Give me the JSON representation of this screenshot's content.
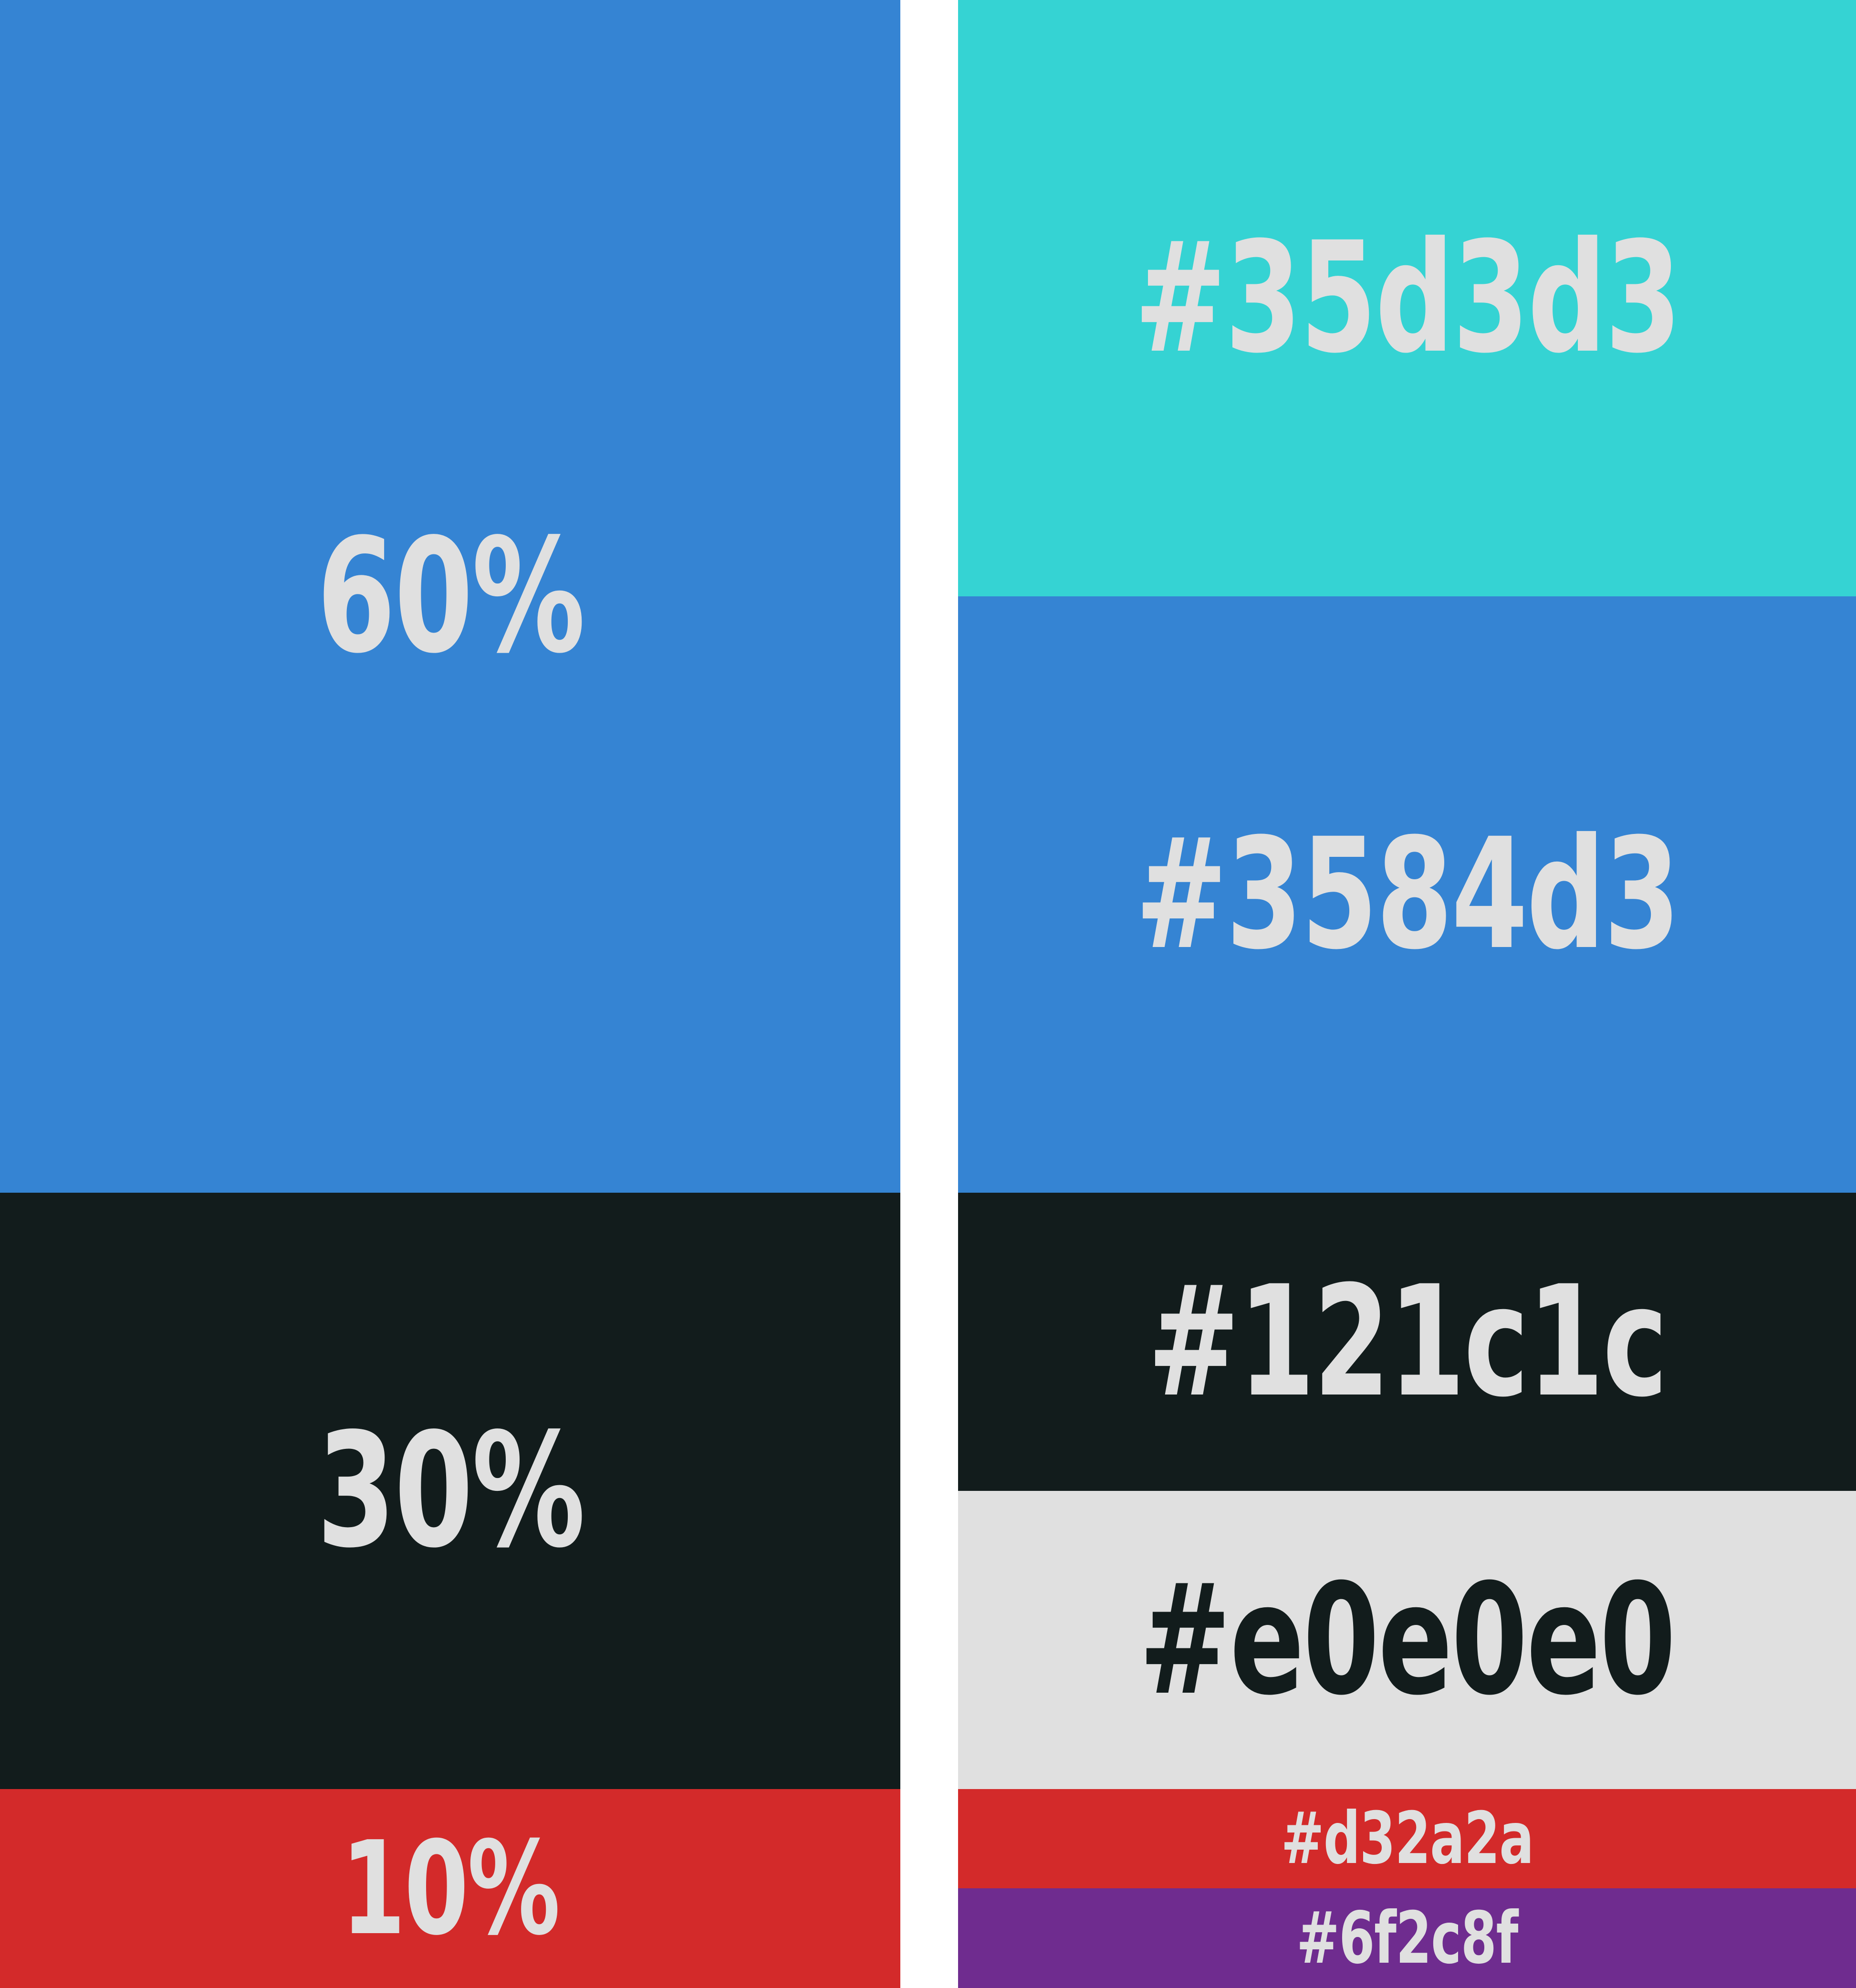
{
  "ratios": [
    {
      "label": "60%",
      "color": "#3584d3",
      "text_color": "#e0e0e0"
    },
    {
      "label": "30%",
      "color": "#121c1c",
      "text_color": "#e0e0e0"
    },
    {
      "label": "10%",
      "color": "#d32a2a",
      "text_color": "#e0e0e0"
    }
  ],
  "swatches": [
    {
      "label": "#35d3d3",
      "color": "#35d3d3",
      "text_color": "#e0e0e0"
    },
    {
      "label": "#3584d3",
      "color": "#3584d3",
      "text_color": "#e0e0e0"
    },
    {
      "label": "#121c1c",
      "color": "#121c1c",
      "text_color": "#e0e0e0"
    },
    {
      "label": "#e0e0e0",
      "color": "#e0e0e0",
      "text_color": "#121c1c"
    },
    {
      "label": "#d32a2a",
      "color": "#d32a2a",
      "text_color": "#e0e0e0"
    },
    {
      "label": "#6f2c8f",
      "color": "#6f2c8f",
      "text_color": "#e0e0e0"
    }
  ]
}
